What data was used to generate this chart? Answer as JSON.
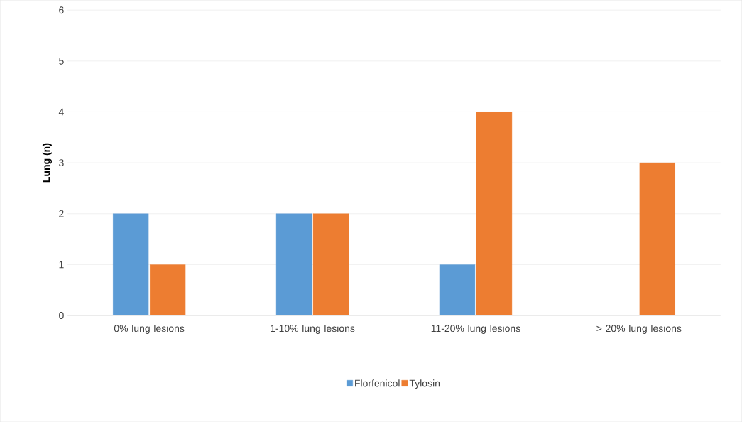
{
  "chart_data": {
    "type": "bar",
    "ylabel": "Lung (n)",
    "categories": [
      "0% lung lesions",
      "1-10% lung lesions",
      "11-20% lung lesions",
      "> 20% lung lesions"
    ],
    "series": [
      {
        "name": "Florfenicol",
        "color": "#5b9bd5",
        "values": [
          2,
          2,
          1,
          0
        ]
      },
      {
        "name": "Tylosin",
        "color": "#ed7d31",
        "values": [
          1,
          2,
          4,
          3
        ]
      }
    ],
    "ylim": [
      0,
      6
    ],
    "yticks": [
      0,
      1,
      2,
      3,
      4,
      5,
      6
    ],
    "grid": "y",
    "legend": "bottom"
  }
}
